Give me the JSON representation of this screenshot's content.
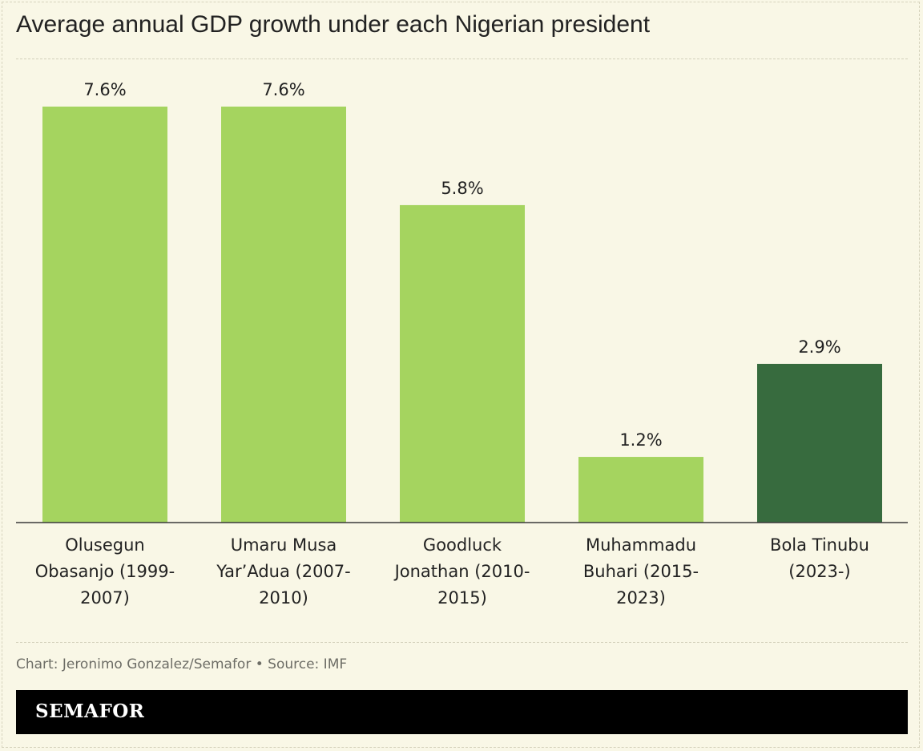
{
  "title": "Average annual GDP growth under each Nigerian president",
  "credit": "Chart: Jeronimo Gonzalez/Semafor • Source: IMF",
  "brand": "SEMAFOR",
  "colors": {
    "background": "#f9f7e6",
    "bar": "#a5d45f",
    "highlight": "#376b3e",
    "baseline": "#3a3a3a"
  },
  "chart_data": {
    "type": "bar",
    "title": "Average annual GDP growth under each Nigerian president",
    "categories": [
      "Olusegun Obasanjo (1999-2007)",
      "Umaru Musa Yar’Adua (2007-2010)",
      "Goodluck Jonathan (2010-2015)",
      "Muhammadu Buhari (2015-2023)",
      "Bola Tinubu (2023-)"
    ],
    "category_lines": [
      [
        "Olusegun",
        "Obasanjo (1999-",
        "2007)"
      ],
      [
        "Umaru Musa",
        "Yar’Adua (2007-",
        "2010)"
      ],
      [
        "Goodluck",
        "Jonathan (2010-",
        "2015)"
      ],
      [
        "Muhammadu",
        "Buhari (2015-",
        "2023)"
      ],
      [
        "Bola Tinubu",
        "(2023-)"
      ]
    ],
    "values": [
      7.6,
      7.6,
      5.8,
      1.2,
      2.9
    ],
    "value_labels": [
      "7.6%",
      "7.6%",
      "5.8%",
      "1.2%",
      "2.9%"
    ],
    "highlight_index": 4,
    "ylim": [
      0,
      7.6
    ],
    "xlabel": "",
    "ylabel": "",
    "grid": false,
    "legend": "none"
  }
}
